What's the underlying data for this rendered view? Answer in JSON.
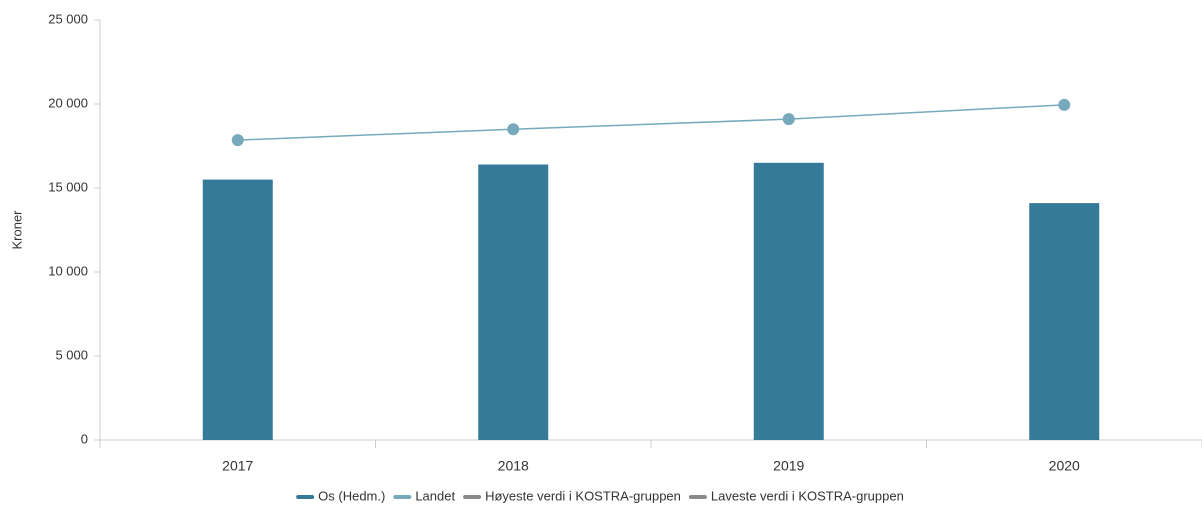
{
  "chart_data": {
    "type": "bar",
    "ylabel": "Kroner",
    "categories": [
      "2017",
      "2018",
      "2019",
      "2020"
    ],
    "series": [
      {
        "name": "Os (Hedm.)",
        "type": "bar",
        "color": "#357a98",
        "values": [
          15500,
          16400,
          16500,
          14100
        ]
      },
      {
        "name": "Landet",
        "type": "line",
        "color": "#77a9bd",
        "values": [
          17850,
          18500,
          19100,
          19950
        ]
      },
      {
        "name": "Høyeste verdi i KOSTRA-gruppen",
        "type": "line",
        "color": "#8a8a8a",
        "values": [
          null,
          null,
          null,
          null
        ]
      },
      {
        "name": "Laveste verdi i KOSTRA-gruppen",
        "type": "line",
        "color": "#8a8a8a",
        "values": [
          null,
          null,
          null,
          null
        ]
      }
    ],
    "ylim": [
      0,
      25000
    ],
    "yticks": [
      0,
      {
        "value": 5000,
        "label": "5 000"
      },
      {
        "value": 10000,
        "label": "10 000"
      },
      {
        "value": 15000,
        "label": "15 000"
      },
      {
        "value": 20000,
        "label": "20 000"
      },
      {
        "value": 25000,
        "label": "25 000"
      }
    ],
    "grid": false,
    "legend": "bottom"
  }
}
